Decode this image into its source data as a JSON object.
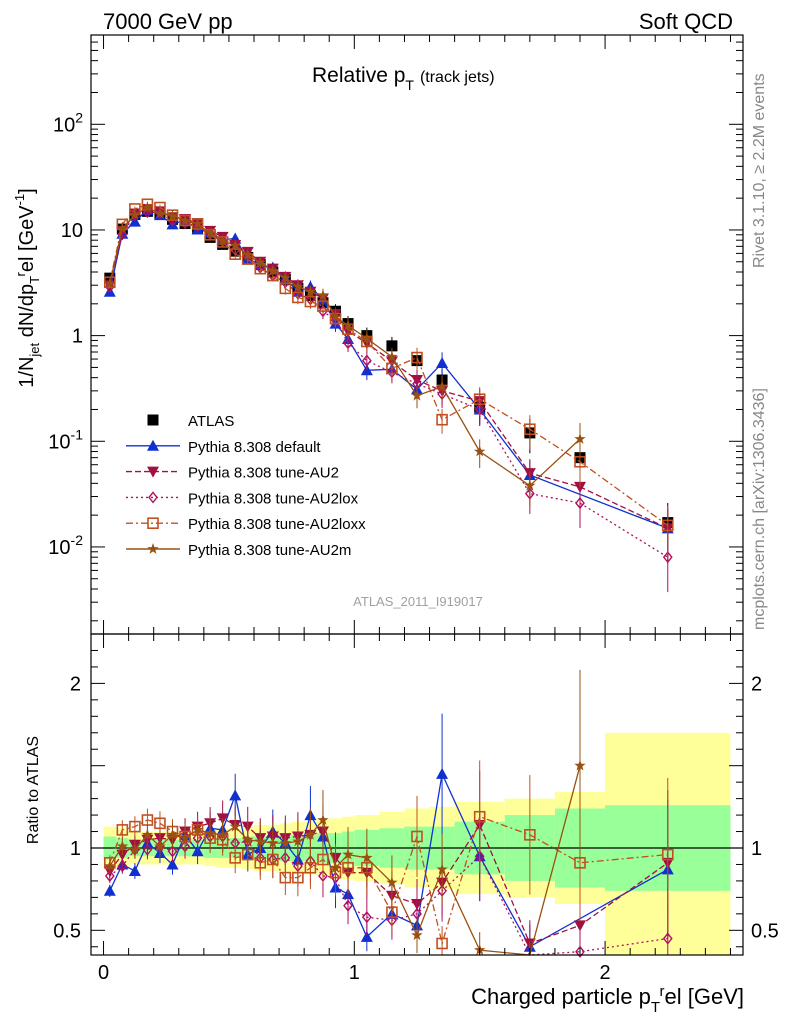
{
  "header": {
    "left": "7000 GeV pp",
    "right": "Soft QCD"
  },
  "side": {
    "top": "Rivet 3.1.10, ≥ 2.2M events",
    "bottom": "mcplots.cern.ch [arXiv:1306.3436]"
  },
  "colors": {
    "atlas": "#000000",
    "default": "#1030d0",
    "au2": "#a01040",
    "au2lox": "#b01060",
    "au2loxx": "#c05020",
    "au2m": "#9a5010",
    "band_green": "#99ff99",
    "band_yellow": "#ffff99"
  },
  "chart_data": [
    {
      "type": "line",
      "title": "Relative p_T (track jets)",
      "title_main": "Relative p",
      "title_sub": "T",
      "title_small": "(track jets)",
      "watermark": "ATLAS_2011_I919017",
      "ylabel": "1/N_jet dN/dp_T^rel [GeV^-1]",
      "ylabel_parts": {
        "a": "1/N",
        "b": "jet",
        "c": " dN/dp",
        "d": "T",
        "e": "r",
        "f": "el [GeV",
        "g": "-1",
        "h": "]"
      },
      "yscale": "log",
      "ylim": [
        0.0015,
        700
      ],
      "xlim": [
        -0.05,
        2.55
      ],
      "y_ticks": [
        {
          "value": 0.01,
          "base": "10",
          "exp": "-2"
        },
        {
          "value": 0.1,
          "base": "10",
          "exp": "-1"
        },
        {
          "value": 1,
          "label": "1"
        },
        {
          "value": 10,
          "label": "10"
        },
        {
          "value": 100,
          "base": "10",
          "exp": "2"
        }
      ],
      "legend": {
        "position": "lower-left",
        "entries": [
          "ATLAS",
          "Pythia 8.308 default",
          "Pythia 8.308 tune-AU2",
          "Pythia 8.308 tune-AU2lox",
          "Pythia 8.308 tune-AU2loxx",
          "Pythia 8.308 tune-AU2m"
        ]
      },
      "x": [
        0.025,
        0.075,
        0.125,
        0.175,
        0.225,
        0.275,
        0.325,
        0.375,
        0.425,
        0.475,
        0.525,
        0.575,
        0.625,
        0.675,
        0.725,
        0.775,
        0.825,
        0.875,
        0.925,
        0.975,
        1.05,
        1.15,
        1.25,
        1.35,
        1.5,
        1.7,
        1.9,
        2.25
      ],
      "series": [
        {
          "name": "ATLAS",
          "marker": "square",
          "values": [
            3.5,
            10.2,
            14.0,
            15.0,
            14.2,
            12.6,
            11.5,
            10.3,
            8.5,
            7.3,
            6.3,
            5.5,
            4.7,
            4.0,
            3.4,
            2.8,
            2.4,
            2.05,
            1.7,
            1.3,
            1.0,
            0.8,
            0.58,
            0.38,
            0.21,
            0.12,
            0.07,
            0.017
          ]
        },
        {
          "name": "Pythia 8.308 default",
          "marker": "triangle-up",
          "values": [
            2.6,
            9.2,
            12.0,
            15.5,
            13.8,
            11.3,
            12.4,
            10.1,
            9.5,
            8.1,
            8.3,
            5.3,
            4.7,
            4.4,
            3.5,
            2.6,
            2.9,
            2.2,
            1.3,
            0.93,
            0.47,
            0.48,
            0.31,
            0.55,
            0.2,
            0.048,
            null,
            0.015
          ]
        },
        {
          "name": "Pythia 8.308 tune-AU2",
          "marker": "triangle-down",
          "values": [
            3.0,
            9.8,
            14.3,
            15.8,
            15.0,
            13.2,
            12.7,
            11.6,
            9.8,
            8.6,
            7.2,
            6.2,
            5.0,
            4.3,
            3.6,
            3.0,
            2.6,
            2.25,
            1.6,
            1.1,
            0.85,
            0.57,
            0.38,
            0.3,
            0.24,
            0.05,
            0.037,
            0.015
          ]
        },
        {
          "name": "Pythia 8.308 tune-AU2lox",
          "marker": "diamond-open",
          "values": [
            2.9,
            9.1,
            13.9,
            14.8,
            14.4,
            12.3,
            11.6,
            10.9,
            9.1,
            7.8,
            6.5,
            5.7,
            4.4,
            3.7,
            3.2,
            2.5,
            2.2,
            1.7,
            1.4,
            0.85,
            0.58,
            0.45,
            0.35,
            0.28,
            0.2,
            0.032,
            0.026,
            0.008
          ]
        },
        {
          "name": "Pythia 8.308 tune-AU2loxx",
          "marker": "square-open",
          "values": [
            3.2,
            11.3,
            15.8,
            17.5,
            16.3,
            13.8,
            12.3,
            11.4,
            9.0,
            7.7,
            5.9,
            5.3,
            4.3,
            3.7,
            2.8,
            2.3,
            2.1,
            1.9,
            1.45,
            1.15,
            0.88,
            0.49,
            0.62,
            0.16,
            0.25,
            0.13,
            0.064,
            0.016
          ]
        },
        {
          "name": "Pythia 8.308 tune-AU2m",
          "marker": "star",
          "values": [
            3.1,
            10.3,
            13.9,
            16.2,
            14.3,
            13.6,
            12.2,
            11.4,
            9.3,
            7.9,
            7.1,
            5.8,
            4.9,
            4.1,
            3.5,
            2.9,
            2.6,
            2.4,
            1.5,
            1.25,
            0.94,
            0.63,
            0.27,
            0.33,
            0.08,
            0.038,
            0.105,
            null
          ]
        }
      ]
    },
    {
      "type": "line",
      "ylabel": "Ratio to ATLAS",
      "xlabel": "Charged particle p_T^rel [GeV]",
      "xlabel_parts": {
        "a": "Charged particle p",
        "b": "T",
        "c": "r",
        "d": "el [GeV]"
      },
      "ylim": [
        0.35,
        2.3
      ],
      "xlim": [
        -0.05,
        2.55
      ],
      "x_ticks": [
        0,
        1,
        2
      ],
      "y_ticks": [
        0.5,
        1,
        2
      ],
      "bands": {
        "edges": [
          0.0,
          0.05,
          0.1,
          0.15,
          0.2,
          0.25,
          0.3,
          0.35,
          0.4,
          0.45,
          0.5,
          0.55,
          0.6,
          0.65,
          0.7,
          0.75,
          0.8,
          0.85,
          0.9,
          0.95,
          1.0,
          1.1,
          1.2,
          1.3,
          1.4,
          1.6,
          1.8,
          2.0,
          2.5
        ],
        "green": [
          0.07,
          0.06,
          0.05,
          0.05,
          0.05,
          0.05,
          0.05,
          0.05,
          0.06,
          0.06,
          0.06,
          0.07,
          0.07,
          0.07,
          0.08,
          0.08,
          0.08,
          0.09,
          0.09,
          0.1,
          0.11,
          0.12,
          0.13,
          0.13,
          0.16,
          0.2,
          0.24,
          0.26
        ],
        "yellow": [
          0.13,
          0.12,
          0.1,
          0.1,
          0.1,
          0.1,
          0.1,
          0.1,
          0.11,
          0.12,
          0.12,
          0.13,
          0.14,
          0.14,
          0.15,
          0.16,
          0.16,
          0.17,
          0.18,
          0.19,
          0.2,
          0.22,
          0.24,
          0.25,
          0.28,
          0.3,
          0.34,
          0.7
        ]
      },
      "x": [
        0.025,
        0.075,
        0.125,
        0.175,
        0.225,
        0.275,
        0.325,
        0.375,
        0.425,
        0.475,
        0.525,
        0.575,
        0.625,
        0.675,
        0.725,
        0.775,
        0.825,
        0.875,
        0.925,
        0.975,
        1.05,
        1.15,
        1.25,
        1.35,
        1.5,
        1.7,
        1.9,
        2.25
      ],
      "series": [
        {
          "name": "Pythia 8.308 default",
          "values": [
            0.74,
            0.9,
            0.86,
            1.03,
            0.97,
            0.9,
            1.08,
            0.98,
            1.12,
            1.11,
            1.32,
            0.96,
            1.0,
            1.1,
            1.03,
            0.93,
            1.2,
            1.07,
            0.76,
            0.72,
            0.46,
            0.6,
            0.53,
            1.45,
            0.95,
            0.4,
            null,
            0.87
          ]
        },
        {
          "name": "Pythia 8.308 tune-AU2",
          "values": [
            0.86,
            0.96,
            1.02,
            1.05,
            1.06,
            1.05,
            1.1,
            1.13,
            1.15,
            1.18,
            1.14,
            1.13,
            1.06,
            1.07,
            1.06,
            1.07,
            1.08,
            1.1,
            0.94,
            0.85,
            0.85,
            0.71,
            0.66,
            0.79,
            1.14,
            0.42,
            0.53,
            0.91
          ]
        },
        {
          "name": "Pythia 8.308 tune-AU2lox",
          "values": [
            0.83,
            0.89,
            0.99,
            0.99,
            1.01,
            0.98,
            1.01,
            1.06,
            1.07,
            1.07,
            1.03,
            1.04,
            0.94,
            0.93,
            0.94,
            0.89,
            0.92,
            0.83,
            0.82,
            0.65,
            0.58,
            0.56,
            0.6,
            0.74,
            0.95,
            0.27,
            0.37,
            0.45
          ]
        },
        {
          "name": "Pythia 8.308 tune-AU2loxx",
          "values": [
            0.91,
            1.11,
            1.13,
            1.17,
            1.15,
            1.1,
            1.07,
            1.11,
            1.06,
            1.05,
            0.94,
            0.96,
            0.91,
            0.93,
            0.82,
            0.82,
            0.88,
            0.93,
            0.85,
            0.88,
            0.88,
            0.61,
            1.07,
            0.42,
            1.19,
            1.08,
            0.91,
            0.96
          ]
        },
        {
          "name": "Pythia 8.308 tune-AU2m",
          "values": [
            0.89,
            1.01,
            0.99,
            1.08,
            1.01,
            1.08,
            1.06,
            1.11,
            1.09,
            1.08,
            1.13,
            1.05,
            1.04,
            1.03,
            1.03,
            1.04,
            1.08,
            1.17,
            0.88,
            0.96,
            0.94,
            0.79,
            0.47,
            0.87,
            0.38,
            0.32,
            1.5,
            null
          ]
        }
      ]
    }
  ]
}
